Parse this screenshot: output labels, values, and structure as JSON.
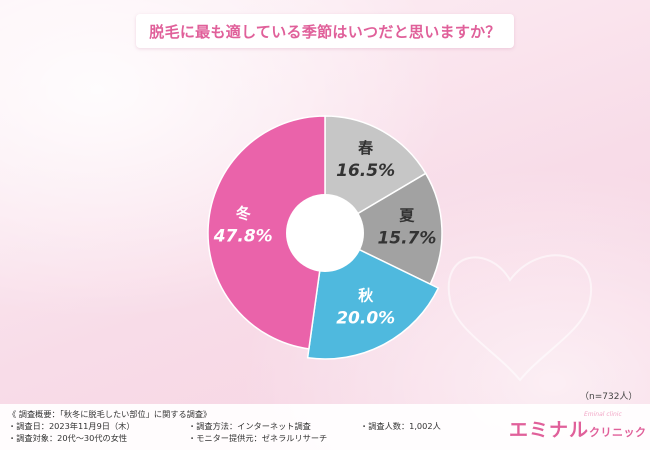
{
  "title": "脱毛に最も適している季節はいつだと思いますか？",
  "chart_data": {
    "type": "pie",
    "donut": true,
    "start": "12 o'clock",
    "direction": "clockwise",
    "categories": [
      "春",
      "夏",
      "秋",
      "冬"
    ],
    "values": [
      16.5,
      15.7,
      20.0,
      47.8
    ],
    "labels": [
      "16.5%",
      "15.7%",
      "20.0%",
      "47.8%"
    ],
    "colors": [
      "#c6c6c6",
      "#a2a2a2",
      "#4fb9de",
      "#ea63aa"
    ],
    "highlighted": "秋"
  },
  "sample_note": "（n=732人）",
  "footer": {
    "summary": "《 調査概要：「秋冬に脱毛したい部位」に関する調査》",
    "date": "・調査日：2023年11月9日（木）",
    "target": "・調査対象：20代〜30代の女性",
    "method": "・調査方法：インターネット調査",
    "provider": "・モニター提供元：ゼネラルリサーチ",
    "count": "・調査人数：1,002人"
  },
  "brand": {
    "main": "エミナル",
    "sub": "クリニック",
    "tagline": "Eminal clinic"
  }
}
